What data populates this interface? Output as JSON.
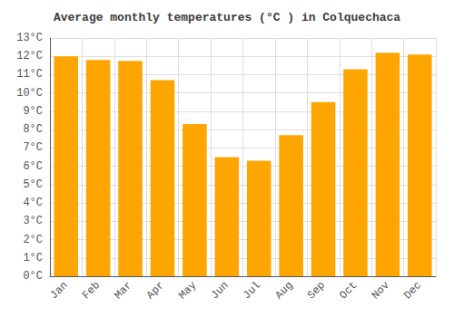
{
  "chart_data": {
    "type": "bar",
    "title": "Average monthly temperatures (°C ) in Colquechaca",
    "categories": [
      "Jan",
      "Feb",
      "Mar",
      "Apr",
      "May",
      "Jun",
      "Jul",
      "Aug",
      "Sep",
      "Oct",
      "Nov",
      "Dec"
    ],
    "values": [
      12.0,
      11.8,
      11.75,
      10.7,
      8.3,
      6.5,
      6.3,
      7.7,
      9.5,
      11.3,
      12.2,
      12.1
    ],
    "color": "#FFA500",
    "ylim": [
      0,
      13
    ],
    "yticks": [
      {
        "value": 0,
        "label": "0°C"
      },
      {
        "value": 1,
        "label": "1°C"
      },
      {
        "value": 2,
        "label": "2°C"
      },
      {
        "value": 3,
        "label": "3°C"
      },
      {
        "value": 4,
        "label": "4°C"
      },
      {
        "value": 5,
        "label": "5°C"
      },
      {
        "value": 6,
        "label": "6°C"
      },
      {
        "value": 7,
        "label": "7°C"
      },
      {
        "value": 8,
        "label": "8°C"
      },
      {
        "value": 9,
        "label": "9°C"
      },
      {
        "value": 10,
        "label": "10°C"
      },
      {
        "value": 11,
        "label": "11°C"
      },
      {
        "value": 12,
        "label": "12°C"
      },
      {
        "value": 13,
        "label": "13°C"
      }
    ],
    "grid": true
  }
}
